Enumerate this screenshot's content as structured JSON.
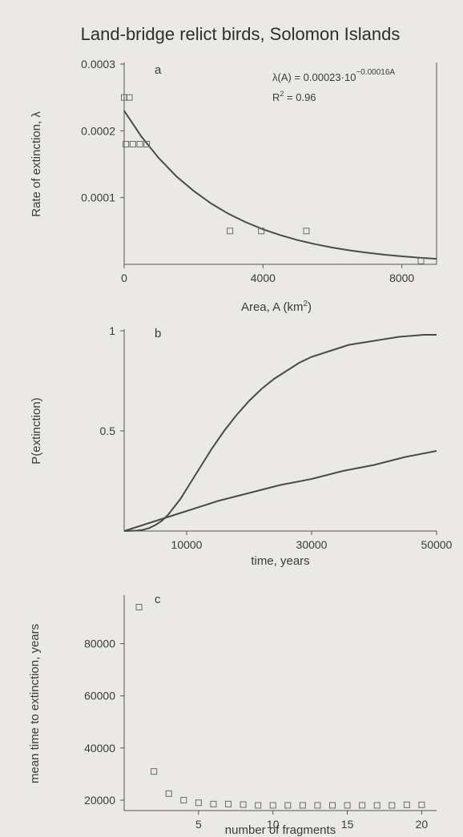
{
  "figure_title": "Land-bridge relict birds, Solomon Islands",
  "colors": {
    "background": "#ebe9e6",
    "ink": "#3a3a3a",
    "curve": "#4a4a4a"
  },
  "chart_data": [
    {
      "type": "scatter",
      "panel": "a",
      "equation": {
        "lhs": "λ(A) = 0.00023·10",
        "exponent": "−0.00016A",
        "r2_base": "R",
        "r2_sup": "2",
        "r2_value": "= 0.96"
      },
      "xlabel": "Area, A  (km",
      "xlabel_sup": "2",
      "xlabel_tail": ")",
      "ylabel": "Rate of extinction, λ",
      "xlim": [
        0,
        9000
      ],
      "ylim": [
        0,
        0.0003
      ],
      "xticks": [
        0,
        4000,
        8000
      ],
      "xtick_labels": [
        "0",
        "4000",
        "8000"
      ],
      "yticks": [
        0.0001,
        0.0002,
        0.0003
      ],
      "ytick_labels": [
        "0.0001",
        "0.0002",
        "0.0003"
      ],
      "points": [
        {
          "x": 0,
          "y": 0.00025
        },
        {
          "x": 150,
          "y": 0.00025
        },
        {
          "x": 50,
          "y": 0.00018
        },
        {
          "x": 250,
          "y": 0.00018
        },
        {
          "x": 450,
          "y": 0.00018
        },
        {
          "x": 650,
          "y": 0.00018
        },
        {
          "x": 3050,
          "y": 5e-05
        },
        {
          "x": 3950,
          "y": 5e-05
        },
        {
          "x": 5250,
          "y": 5e-05
        },
        {
          "x": 8550,
          "y": 5e-06
        }
      ],
      "fit": {
        "x": [
          0,
          500,
          1000,
          1500,
          2000,
          2500,
          3000,
          3500,
          4000,
          4500,
          5000,
          5500,
          6000,
          6500,
          7000,
          7500,
          8000,
          8500,
          9000
        ],
        "y": [
          0.00023,
          0.000191,
          0.000159,
          0.000132,
          0.00011,
          9.13e-05,
          7.59e-05,
          6.31e-05,
          5.25e-05,
          4.37e-05,
          3.63e-05,
          3.02e-05,
          2.51e-05,
          2.09e-05,
          1.74e-05,
          1.44e-05,
          1.2e-05,
          1e-05,
          8.3e-06
        ]
      }
    },
    {
      "type": "line",
      "panel": "b",
      "xlabel": "time, years",
      "ylabel": "P(extinction)",
      "xlim": [
        0,
        50000
      ],
      "ylim": [
        0,
        1
      ],
      "xticks": [
        10000,
        30000,
        50000
      ],
      "xtick_labels": [
        "10000",
        "30000",
        "50000"
      ],
      "yticks": [
        0.5,
        1
      ],
      "ytick_labels": [
        "0.5",
        "1"
      ],
      "series": [
        {
          "x": [
            0,
            1000,
            2000,
            3000,
            4000,
            5000,
            6000,
            7000,
            8000,
            9000,
            10000,
            12000,
            14000,
            16000,
            18000,
            20000,
            22000,
            24000,
            26000,
            28000,
            30000,
            33000,
            36000,
            40000,
            44000,
            48000,
            50000
          ],
          "y": [
            0,
            0.001,
            0.002,
            0.006,
            0.015,
            0.03,
            0.05,
            0.08,
            0.12,
            0.16,
            0.21,
            0.31,
            0.41,
            0.5,
            0.58,
            0.65,
            0.71,
            0.76,
            0.8,
            0.84,
            0.87,
            0.9,
            0.93,
            0.95,
            0.97,
            0.98,
            0.98
          ]
        },
        {
          "x": [
            0,
            5000,
            10000,
            15000,
            20000,
            25000,
            30000,
            35000,
            40000,
            45000,
            50000
          ],
          "y": [
            0,
            0.05,
            0.1,
            0.15,
            0.19,
            0.23,
            0.26,
            0.3,
            0.33,
            0.37,
            0.4
          ]
        }
      ]
    },
    {
      "type": "scatter",
      "panel": "c",
      "xlabel": "number of fragments",
      "ylabel": "mean time to extinction, years",
      "xlim": [
        0,
        21
      ],
      "ylim": [
        16000,
        98000
      ],
      "xticks": [
        5,
        10,
        15,
        20
      ],
      "xtick_labels": [
        "5",
        "10",
        "15",
        "20"
      ],
      "yticks": [
        20000,
        40000,
        60000,
        80000
      ],
      "ytick_labels": [
        "20000",
        "40000",
        "60000",
        "80000"
      ],
      "points": [
        {
          "x": 1,
          "y": 94000
        },
        {
          "x": 2,
          "y": 31000
        },
        {
          "x": 3,
          "y": 22500
        },
        {
          "x": 4,
          "y": 20000
        },
        {
          "x": 5,
          "y": 19000
        },
        {
          "x": 6,
          "y": 18500
        },
        {
          "x": 7,
          "y": 18500
        },
        {
          "x": 8,
          "y": 18300
        },
        {
          "x": 9,
          "y": 18000
        },
        {
          "x": 10,
          "y": 18000
        },
        {
          "x": 11,
          "y": 18000
        },
        {
          "x": 12,
          "y": 18000
        },
        {
          "x": 13,
          "y": 18000
        },
        {
          "x": 14,
          "y": 18000
        },
        {
          "x": 15,
          "y": 18000
        },
        {
          "x": 16,
          "y": 18000
        },
        {
          "x": 17,
          "y": 18000
        },
        {
          "x": 18,
          "y": 18000
        },
        {
          "x": 19,
          "y": 18200
        },
        {
          "x": 20,
          "y": 18200
        }
      ]
    }
  ]
}
